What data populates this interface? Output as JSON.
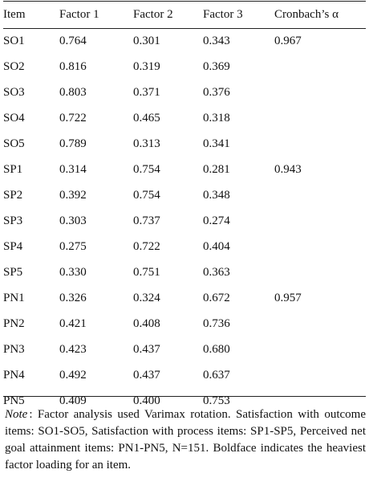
{
  "table": {
    "headers": [
      "Item",
      "Factor 1",
      "Factor 2",
      "Factor 3",
      "Cronbach’s α"
    ],
    "rows": [
      {
        "item": "SO1",
        "f1": "0.764",
        "f2": "0.301",
        "f3": "0.343",
        "alpha": "0.967",
        "bold": 1
      },
      {
        "item": "SO2",
        "f1": "0.816",
        "f2": "0.319",
        "f3": "0.369",
        "alpha": "",
        "bold": 1
      },
      {
        "item": "SO3",
        "f1": "0.803",
        "f2": "0.371",
        "f3": "0.376",
        "alpha": "",
        "bold": 1
      },
      {
        "item": "SO4",
        "f1": "0.722",
        "f2": "0.465",
        "f3": "0.318",
        "alpha": "",
        "bold": 1
      },
      {
        "item": "SO5",
        "f1": "0.789",
        "f2": "0.313",
        "f3": "0.341",
        "alpha": "",
        "bold": 1
      },
      {
        "item": "SP1",
        "f1": "0.314",
        "f2": "0.754",
        "f3": "0.281",
        "alpha": "0.943",
        "bold": 2
      },
      {
        "item": "SP2",
        "f1": "0.392",
        "f2": "0.754",
        "f3": "0.348",
        "alpha": "",
        "bold": 2
      },
      {
        "item": "SP3",
        "f1": "0.303",
        "f2": "0.737",
        "f3": "0.274",
        "alpha": "",
        "bold": 2
      },
      {
        "item": "SP4",
        "f1": "0.275",
        "f2": "0.722",
        "f3": "0.404",
        "alpha": "",
        "bold": 2
      },
      {
        "item": "SP5",
        "f1": "0.330",
        "f2": "0.751",
        "f3": "0.363",
        "alpha": "",
        "bold": 2
      },
      {
        "item": "PN1",
        "f1": "0.326",
        "f2": "0.324",
        "f3": "0.672",
        "alpha": "0.957",
        "bold": 3
      },
      {
        "item": "PN2",
        "f1": "0.421",
        "f2": "0.408",
        "f3": "0.736",
        "alpha": "",
        "bold": 3
      },
      {
        "item": "PN3",
        "f1": "0.423",
        "f2": "0.437",
        "f3": "0.680",
        "alpha": "",
        "bold": 3
      },
      {
        "item": "PN4",
        "f1": "0.492",
        "f2": "0.437",
        "f3": "0.637",
        "alpha": "",
        "bold": 3
      },
      {
        "item": "PN5",
        "f1": "0.409",
        "f2": "0.400",
        "f3": "0.753",
        "alpha": "",
        "bold": 3
      }
    ]
  },
  "note": {
    "label": "Note",
    "text": ":    Factor analysis used Varimax rotation. Satisfaction with outcome items: SO1-SO5, Satisfaction with process items: SP1-SP5, Perceived net goal attainment items: PN1-PN5, N=151.  Boldface indicates the heaviest factor loading for an item."
  }
}
